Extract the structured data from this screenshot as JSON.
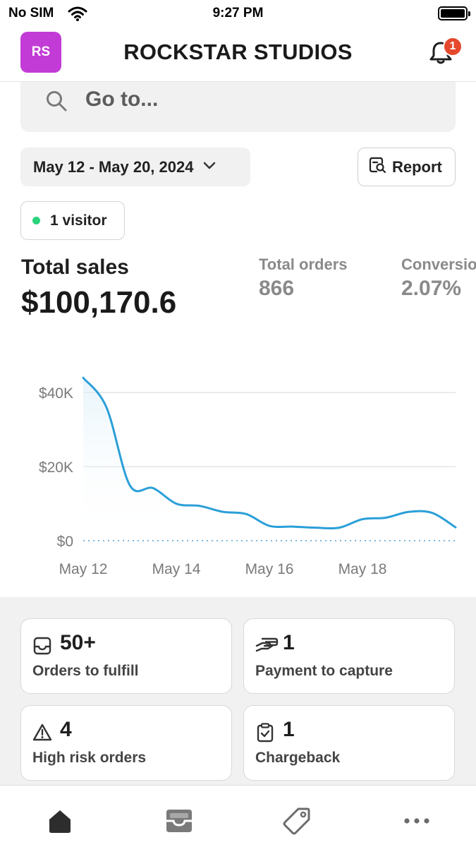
{
  "status_bar": {
    "carrier": "No SIM",
    "time": "9:27 PM"
  },
  "header": {
    "avatar_initials": "RS",
    "store_name": "ROCKSTAR STUDIOS",
    "notification_count": "1"
  },
  "search": {
    "placeholder": "Go to..."
  },
  "date_range": {
    "label": "May 12 - May 20, 2024"
  },
  "report_button": {
    "label": "Report"
  },
  "visitors": {
    "label": "1 visitor"
  },
  "metrics": {
    "total_sales": {
      "label": "Total sales",
      "value": "$100,170.6"
    },
    "total_orders": {
      "label": "Total orders",
      "value": "866"
    },
    "conversion": {
      "label": "Conversion",
      "value": "2.07%"
    }
  },
  "chart_data": {
    "type": "line",
    "x": [
      "2024-05-12",
      "2024-05-12T12",
      "2024-05-13",
      "2024-05-13T12",
      "2024-05-14",
      "2024-05-14T12",
      "2024-05-15",
      "2024-05-15T12",
      "2024-05-16",
      "2024-05-16T12",
      "2024-05-17",
      "2024-05-17T12",
      "2024-05-18",
      "2024-05-18T12",
      "2024-05-19",
      "2024-05-19T12",
      "2024-05-20"
    ],
    "series": [
      {
        "values": [
          44000,
          36000,
          15000,
          14200,
          10000,
          9400,
          7800,
          7200,
          4000,
          3800,
          3500,
          3500,
          5800,
          6200,
          7800,
          7500,
          3600
        ]
      }
    ],
    "x_tick_labels": [
      "May 12",
      "May 14",
      "May 16",
      "May 18"
    ],
    "y_tick_labels": [
      "$40K",
      "$20K",
      "$0"
    ],
    "y_ticks": [
      40000,
      20000,
      0
    ],
    "ylim": [
      0,
      45000
    ],
    "grid": true,
    "line_color": "#2a9fd8"
  },
  "cards": [
    {
      "count": "50+",
      "label": "Orders to fulfill",
      "icon": "inbox-icon"
    },
    {
      "count": "1",
      "label": "Payment to capture",
      "icon": "payment-hand-icon"
    },
    {
      "count": "4",
      "label": "High risk orders",
      "icon": "warning-icon"
    },
    {
      "count": "1",
      "label": "Chargeback",
      "icon": "clipboard-check-icon"
    }
  ],
  "tabs": [
    {
      "name": "home",
      "icon": "home-icon"
    },
    {
      "name": "orders",
      "icon": "inbox-tray-icon"
    },
    {
      "name": "products",
      "icon": "tag-icon"
    },
    {
      "name": "more",
      "icon": "more-icon"
    }
  ]
}
